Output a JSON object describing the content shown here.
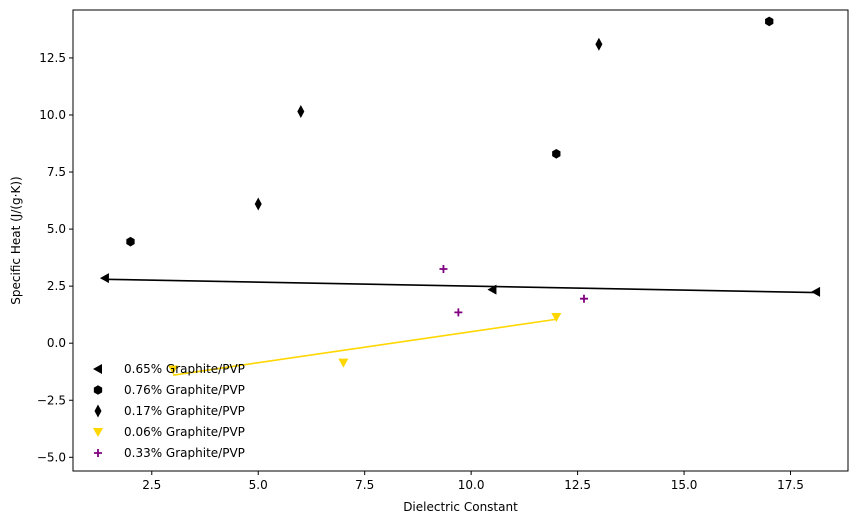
{
  "chart_data": {
    "type": "scatter",
    "title": "",
    "xlabel": "Dielectric Constant",
    "ylabel": "Specific Heat (J/(g·K))",
    "xlim": [
      0.65,
      18.85
    ],
    "ylim": [
      -5.6,
      14.6
    ],
    "xticks": [
      2.5,
      5.0,
      7.5,
      10.0,
      12.5,
      15.0,
      17.5
    ],
    "xtick_labels": [
      "2.5",
      "5.0",
      "7.5",
      "10.0",
      "12.5",
      "15.0",
      "17.5"
    ],
    "yticks": [
      -5.0,
      -2.5,
      0.0,
      2.5,
      5.0,
      7.5,
      10.0,
      12.5
    ],
    "ytick_labels": [
      "−5.0",
      "−2.5",
      "0.0",
      "2.5",
      "5.0",
      "7.5",
      "10.0",
      "12.5"
    ],
    "grid": false,
    "legend_position": "lower-left",
    "series": [
      {
        "name": "0.65% Graphite/PVP",
        "marker": "triangle-left",
        "color": "#000000",
        "points": [
          [
            1.4,
            2.85
          ],
          [
            10.5,
            2.35
          ],
          [
            18.1,
            2.25
          ]
        ],
        "fit_line": [
          [
            1.4,
            2.8
          ],
          [
            18.1,
            2.22
          ]
        ]
      },
      {
        "name": "0.76% Graphite/PVP",
        "marker": "hexagon",
        "color": "#000000",
        "points": [
          [
            2.0,
            4.45
          ],
          [
            12.0,
            8.3
          ],
          [
            17.0,
            14.1
          ]
        ]
      },
      {
        "name": "0.17% Graphite/PVP",
        "marker": "thin-diamond",
        "color": "#000000",
        "points": [
          [
            5.0,
            6.1
          ],
          [
            6.0,
            10.15
          ],
          [
            13.0,
            13.1
          ]
        ]
      },
      {
        "name": "0.06% Graphite/PVP",
        "marker": "triangle-down",
        "color": "#ffd700",
        "points": [
          [
            3.0,
            -1.15
          ],
          [
            7.0,
            -0.85
          ],
          [
            12.0,
            1.15
          ]
        ],
        "fit_line": [
          [
            3.0,
            -1.4
          ],
          [
            12.0,
            1.05
          ]
        ]
      },
      {
        "name": "0.33% Graphite/PVP",
        "marker": "plus",
        "color": "#800080",
        "points": [
          [
            9.35,
            3.25
          ],
          [
            9.7,
            1.35
          ],
          [
            12.65,
            1.95
          ]
        ]
      }
    ]
  }
}
